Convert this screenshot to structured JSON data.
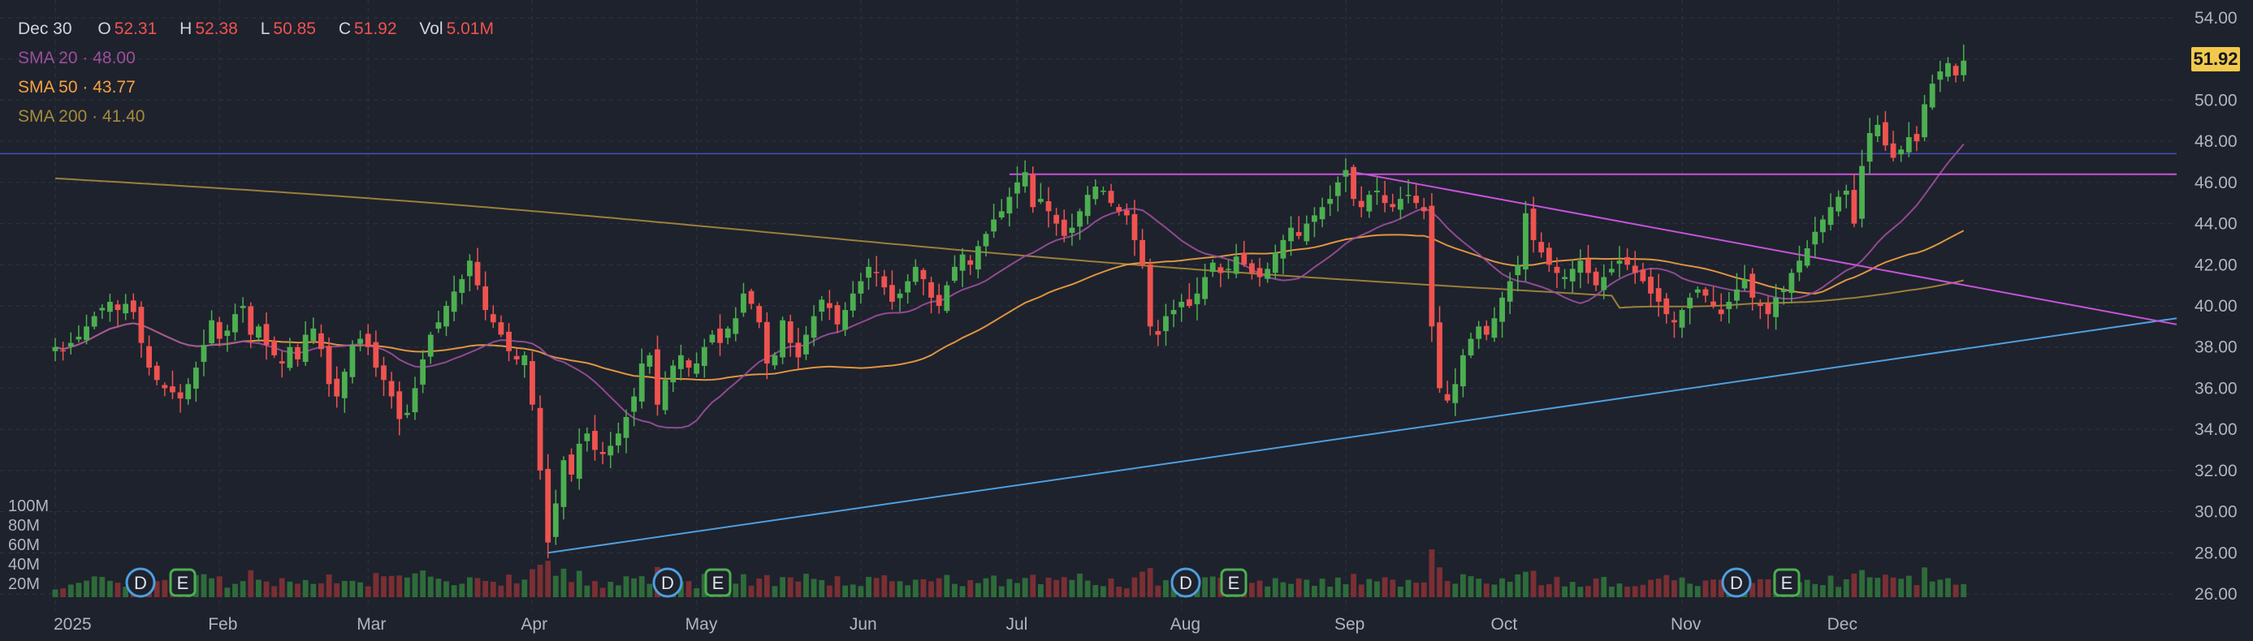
{
  "ohlc": {
    "date": "Dec 30",
    "open_label": "O",
    "open": "52.31",
    "high_label": "H",
    "high": "52.38",
    "low_label": "L",
    "low": "50.85",
    "close_label": "C",
    "close": "51.92",
    "vol_label": "Vol",
    "vol": "5.01M"
  },
  "indicators": [
    {
      "label": "SMA 20",
      "sep": "·",
      "value": "48.00",
      "color": "#9c4f9c"
    },
    {
      "label": "SMA 50",
      "sep": "·",
      "value": "43.77",
      "color": "#f5a142"
    },
    {
      "label": "SMA 200",
      "sep": "·",
      "value": "41.40",
      "color": "#a88a3c"
    }
  ],
  "last_price": "51.92",
  "colors": {
    "up": "#4caf50",
    "down": "#ef5350",
    "trend_blue": "#4f9fde",
    "trend_magenta": "#c653d9",
    "hline": "#4a4fb8",
    "badge": "#f2c94c"
  },
  "chart_data": {
    "type": "candlestick",
    "y_axis": {
      "min": 26,
      "max": 54,
      "ticks": [
        "54.00",
        "52.00",
        "50.00",
        "48.00",
        "46.00",
        "44.00",
        "42.00",
        "40.00",
        "38.00",
        "36.00",
        "34.00",
        "32.00",
        "30.00",
        "28.00",
        "26.00"
      ]
    },
    "volume_axis": {
      "ticks": [
        "100M",
        "80M",
        "60M",
        "40M",
        "20M"
      ]
    },
    "x_ticks": [
      {
        "label": "2025",
        "day": 0
      },
      {
        "label": "Feb",
        "day": 21
      },
      {
        "label": "Mar",
        "day": 40
      },
      {
        "label": "Apr",
        "day": 61
      },
      {
        "label": "May",
        "day": 82
      },
      {
        "label": "Jun",
        "day": 103
      },
      {
        "label": "Jul",
        "day": 123
      },
      {
        "label": "Aug",
        "day": 144
      },
      {
        "label": "Sep",
        "day": 165
      },
      {
        "label": "Oct",
        "day": 185
      },
      {
        "label": "Nov",
        "day": 208
      },
      {
        "label": "Dec",
        "day": 228
      }
    ],
    "closes": [
      38.0,
      37.8,
      38.2,
      38.5,
      39.0,
      39.5,
      39.9,
      40.2,
      39.8,
      40.1,
      39.7,
      38.2,
      37.0,
      36.4,
      36.0,
      35.8,
      35.5,
      36.2,
      37.0,
      38.1,
      39.3,
      38.4,
      38.8,
      39.6,
      40.0,
      38.6,
      39.0,
      38.1,
      37.6,
      37.2,
      38.0,
      37.4,
      38.6,
      38.9,
      37.9,
      36.2,
      35.6,
      36.8,
      38.1,
      38.4,
      38.0,
      37.0,
      36.4,
      35.6,
      34.5,
      34.8,
      36.0,
      37.4,
      38.6,
      39.2,
      40.0,
      40.7,
      41.3,
      42.2,
      41.0,
      39.8,
      39.2,
      38.6,
      37.8,
      37.4,
      37.6,
      35.2,
      32.0,
      28.5,
      30.4,
      32.5,
      31.8,
      33.3,
      33.8,
      33.0,
      32.8,
      33.2,
      33.8,
      34.6,
      35.6,
      37.2,
      37.6,
      35.2,
      36.4,
      37.1,
      37.6,
      37.0,
      37.2,
      38.0,
      38.6,
      38.2,
      38.9,
      39.4,
      40.6,
      40.1,
      39.2,
      37.2,
      37.6,
      39.3,
      38.2,
      37.5,
      38.6,
      39.5,
      40.3,
      39.9,
      39.1,
      39.8,
      40.6,
      41.2,
      41.9,
      41.6,
      40.9,
      40.2,
      40.6,
      41.2,
      41.9,
      41.3,
      40.4,
      40.0,
      41.0,
      41.9,
      42.5,
      42.0,
      42.9,
      43.5,
      44.2,
      44.6,
      45.3,
      46.0,
      46.5,
      44.8,
      45.2,
      44.6,
      44.0,
      43.4,
      43.8,
      44.6,
      45.4,
      45.8,
      45.6,
      45.0,
      44.6,
      44.4,
      43.2,
      42.0,
      39.0,
      38.6,
      39.5,
      39.8,
      40.2,
      40.0,
      40.6,
      41.4,
      42.1,
      41.6,
      41.8,
      42.4,
      42.0,
      41.6,
      41.4,
      41.8,
      42.6,
      43.2,
      43.8,
      43.4,
      44.0,
      44.4,
      44.8,
      45.2,
      46.0,
      46.6,
      45.2,
      44.8,
      45.4,
      45.6,
      45.0,
      44.8,
      45.2,
      45.4,
      45.0,
      44.6,
      39.0,
      36.0,
      35.4,
      36.2,
      37.6,
      38.4,
      39.0,
      38.6,
      39.4,
      40.4,
      41.2,
      42.0,
      44.5,
      43.2,
      42.6,
      42.0,
      41.6,
      41.4,
      41.8,
      42.2,
      41.6,
      41.0,
      41.4,
      41.8,
      42.2,
      42.0,
      41.6,
      41.2,
      40.6,
      40.2,
      39.6,
      39.2,
      39.8,
      40.4,
      40.8,
      40.5,
      40.0,
      39.6,
      40.2,
      40.8,
      41.3,
      40.4,
      40.0,
      39.6,
      40.4,
      40.8,
      41.6,
      42.2,
      42.8,
      43.6,
      44.2,
      44.8,
      45.3,
      45.6,
      44.0,
      46.8,
      48.4,
      48.8,
      47.8,
      47.2,
      47.6,
      48.2,
      48.0,
      49.8,
      50.8,
      51.4,
      51.8,
      51.2,
      51.92
    ]
  }
}
